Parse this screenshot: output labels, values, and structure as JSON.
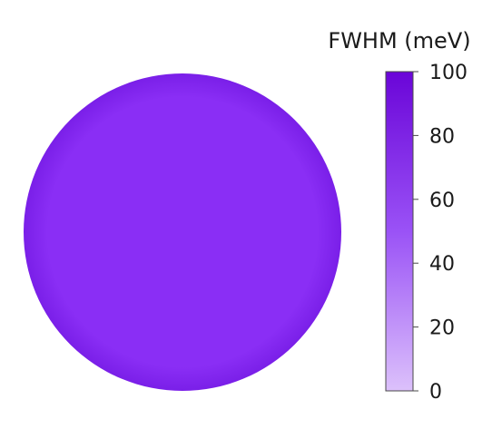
{
  "chart_data": {
    "type": "heatmap",
    "shape": "circular-wafer-map",
    "colorbar": {
      "title": "FWHM (meV)",
      "min": 0,
      "max": 100,
      "ticks": [
        0,
        20,
        40,
        60,
        80,
        100
      ],
      "tick_labels": [
        "0",
        "20",
        "40",
        "60",
        "80",
        "100"
      ],
      "color_low": "#dcc1fb",
      "color_mid": "#9a52f6",
      "color_high": "#6a05d8",
      "placement": "right"
    },
    "map": {
      "approx_uniform_value": 65,
      "fill_color": "#8a2ef5",
      "edge_color": "#7a1fe8"
    }
  }
}
